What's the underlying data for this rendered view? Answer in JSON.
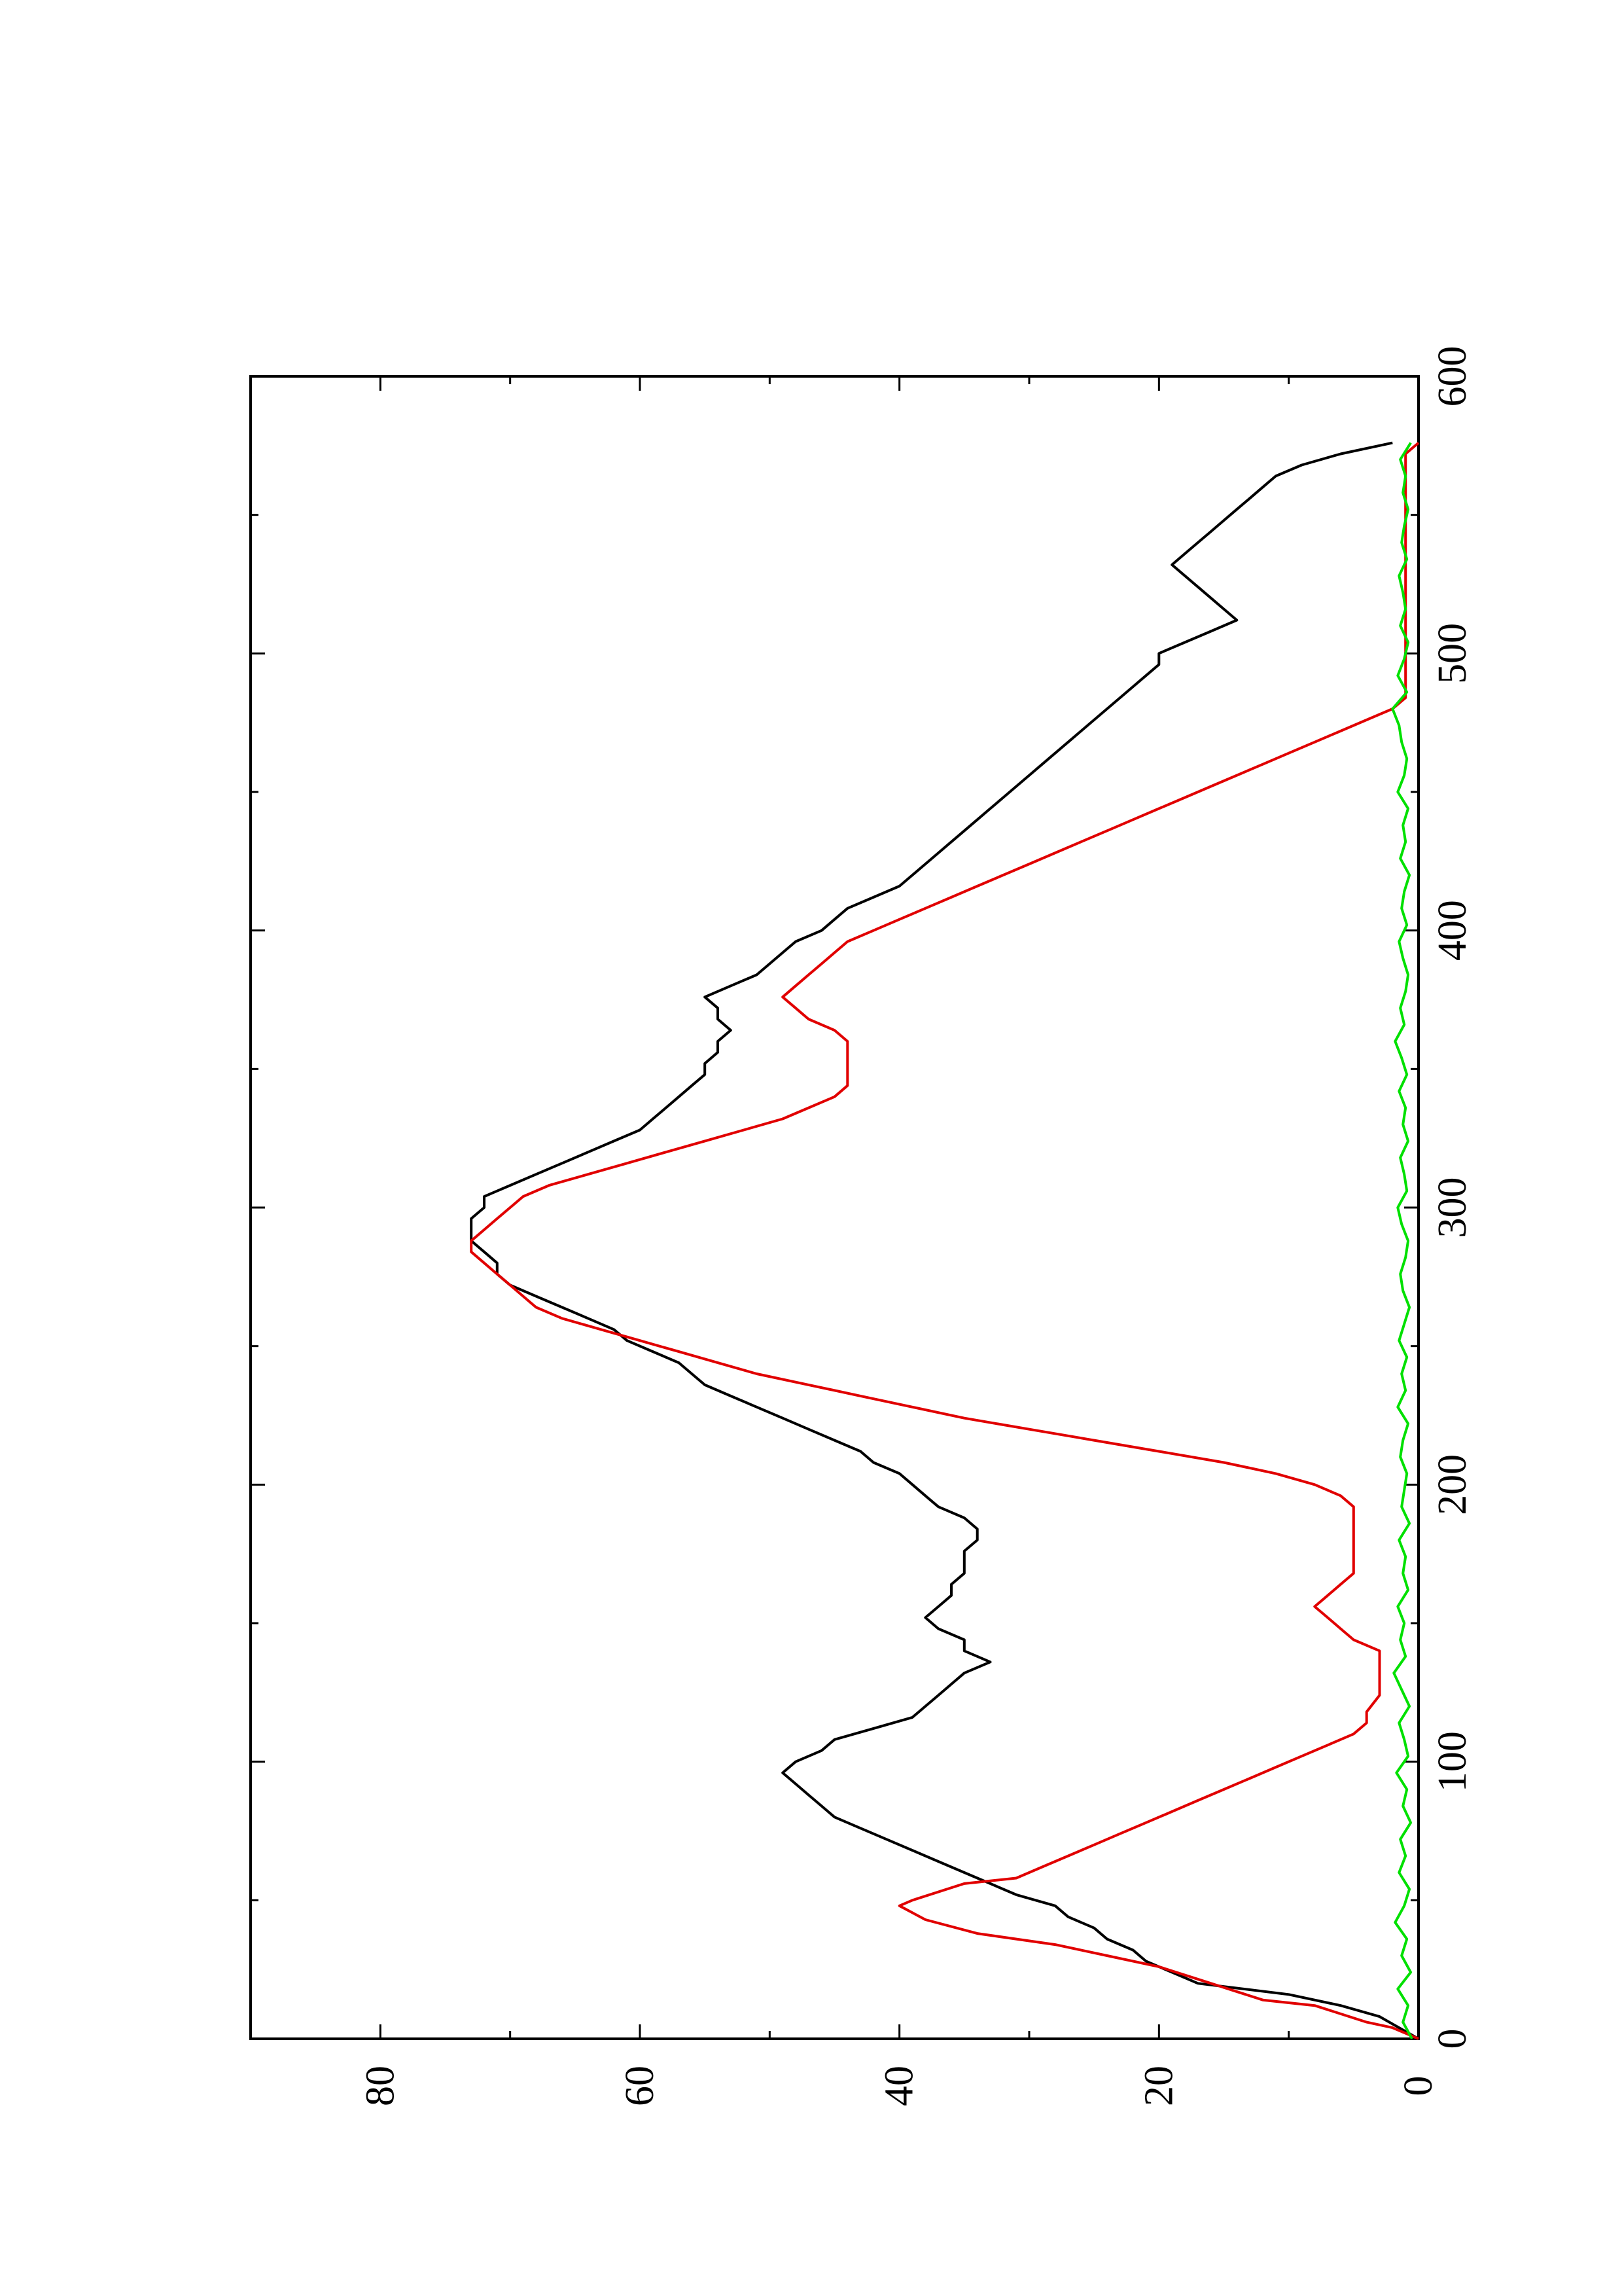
{
  "chart_data": {
    "type": "line",
    "orientation": "rotated-90-counterclockwise",
    "title": "",
    "xlabel": "",
    "ylabel": "",
    "xlim": [
      0,
      600
    ],
    "ylim": [
      0,
      90
    ],
    "x_ticks": [
      0,
      100,
      200,
      300,
      400,
      500,
      600
    ],
    "y_ticks": [
      0,
      20,
      40,
      60,
      80
    ],
    "x_tick_labels": [
      "0",
      "100",
      "200",
      "300",
      "400",
      "500",
      "600"
    ],
    "y_tick_labels": [
      "0",
      "20",
      "40",
      "60",
      "80"
    ],
    "grid": false,
    "legend": "none",
    "series": [
      {
        "color": "#000000",
        "x": [
          0,
          4,
          8,
          12,
          16,
          20,
          24,
          28,
          32,
          36,
          40,
          44,
          48,
          52,
          56,
          60,
          64,
          68,
          72,
          76,
          80,
          84,
          88,
          92,
          96,
          100,
          104,
          108,
          112,
          116,
          120,
          124,
          128,
          132,
          136,
          140,
          144,
          148,
          152,
          156,
          160,
          164,
          168,
          172,
          176,
          180,
          184,
          188,
          192,
          196,
          200,
          204,
          208,
          212,
          216,
          220,
          224,
          228,
          232,
          236,
          240,
          244,
          248,
          252,
          256,
          260,
          264,
          268,
          272,
          276,
          280,
          284,
          288,
          292,
          296,
          300,
          304,
          308,
          312,
          316,
          320,
          324,
          328,
          332,
          336,
          340,
          344,
          348,
          352,
          356,
          360,
          364,
          368,
          372,
          376,
          380,
          384,
          388,
          392,
          396,
          400,
          404,
          408,
          412,
          416,
          420,
          424,
          428,
          432,
          436,
          440,
          444,
          448,
          452,
          456,
          460,
          464,
          468,
          472,
          476,
          480,
          484,
          488,
          492,
          496,
          500,
          504,
          508,
          512,
          516,
          520,
          524,
          528,
          532,
          536,
          540,
          544,
          548,
          552,
          556,
          560,
          564,
          568,
          572,
          576
        ],
        "y": [
          0,
          1.5,
          3,
          6,
          10,
          17,
          19,
          21,
          22,
          24,
          25,
          27,
          28,
          31,
          33,
          35,
          37,
          39,
          41,
          43,
          45,
          46,
          47,
          48,
          49,
          48,
          46,
          45,
          42,
          39,
          38,
          37,
          36,
          35,
          33,
          35,
          35,
          37,
          38,
          37,
          36,
          36,
          35,
          35,
          35,
          34,
          34,
          35,
          37,
          38,
          39,
          40,
          42,
          43,
          45,
          47,
          49,
          51,
          53,
          55,
          56,
          57,
          59,
          61,
          62,
          64,
          66,
          68,
          70,
          71,
          71,
          72,
          73,
          73,
          73,
          72,
          72,
          70,
          68,
          66,
          64,
          62,
          60,
          59,
          58,
          57,
          56,
          55,
          55,
          54,
          54,
          53,
          54,
          54,
          55,
          53,
          51,
          50,
          49,
          48,
          46,
          45,
          44,
          42,
          40,
          39,
          38,
          37,
          36,
          35,
          34,
          33,
          32,
          31,
          30,
          29,
          28,
          27,
          26,
          25,
          24,
          23,
          22,
          21,
          20,
          20,
          18,
          16,
          14,
          15,
          16,
          17,
          18,
          19,
          18,
          17,
          16,
          15,
          14,
          13,
          12,
          11,
          9,
          6,
          2
        ]
      },
      {
        "color": "#e10000",
        "x": [
          0,
          4,
          6,
          12,
          14,
          20,
          26,
          30,
          34,
          38,
          43,
          48,
          50,
          56,
          58,
          62,
          66,
          70,
          74,
          78,
          82,
          86,
          90,
          94,
          98,
          102,
          106,
          110,
          114,
          118,
          124,
          128,
          132,
          136,
          140,
          144,
          148,
          152,
          156,
          160,
          164,
          168,
          176,
          186,
          192,
          196,
          200,
          204,
          208,
          212,
          216,
          220,
          224,
          228,
          232,
          236,
          240,
          244,
          248,
          252,
          256,
          260,
          264,
          268,
          272,
          276,
          280,
          284,
          288,
          292,
          296,
          300,
          304,
          308,
          312,
          316,
          320,
          324,
          328,
          332,
          336,
          340,
          344,
          348,
          352,
          356,
          360,
          364,
          368,
          372,
          376,
          380,
          384,
          388,
          392,
          396,
          400,
          404,
          408,
          412,
          416,
          420,
          424,
          428,
          432,
          436,
          440,
          444,
          448,
          452,
          456,
          460,
          464,
          468,
          472,
          476,
          480,
          484,
          488,
          492,
          496,
          500,
          504,
          508,
          512,
          516,
          520,
          524,
          528,
          532,
          536,
          540,
          544,
          548,
          552,
          556,
          560,
          564,
          568,
          572,
          576
        ],
        "y": [
          0,
          2,
          4,
          8,
          12,
          16,
          20,
          24,
          28,
          34,
          38,
          40,
          39,
          35,
          31,
          29,
          27,
          25,
          23,
          21,
          19,
          17,
          15,
          13,
          11,
          9,
          7,
          5,
          4,
          4,
          3,
          3,
          3,
          3,
          3,
          5,
          6,
          7,
          8,
          7,
          6,
          5,
          5,
          5,
          5,
          6,
          8,
          11,
          15,
          20,
          25,
          30,
          35,
          39,
          43,
          47,
          51,
          54,
          57,
          60,
          63,
          66,
          68,
          69,
          70,
          71,
          72,
          73,
          73,
          72,
          71,
          70,
          69,
          67,
          64,
          61,
          58,
          55,
          52,
          49,
          47,
          45,
          44,
          44,
          44,
          44,
          44,
          45,
          47,
          48,
          49,
          48,
          47,
          46,
          45,
          44,
          42,
          40,
          38,
          36,
          34,
          32,
          30,
          28,
          26,
          24,
          22,
          20,
          18,
          16,
          14,
          12,
          10,
          8,
          6,
          4,
          2,
          1,
          1,
          1,
          1,
          1,
          1,
          1,
          1,
          1,
          1,
          1,
          1,
          1,
          1,
          1,
          1,
          1,
          1,
          1,
          1,
          1,
          1,
          1,
          0
        ]
      },
      {
        "color": "#00e000",
        "x": [
          0,
          6,
          12,
          18,
          24,
          30,
          36,
          42,
          48,
          54,
          60,
          66,
          72,
          78,
          84,
          90,
          96,
          102,
          108,
          114,
          120,
          126,
          132,
          138,
          144,
          150,
          156,
          162,
          168,
          174,
          180,
          186,
          192,
          198,
          204,
          210,
          216,
          222,
          228,
          234,
          240,
          246,
          252,
          258,
          264,
          270,
          276,
          282,
          288,
          294,
          300,
          306,
          312,
          318,
          324,
          330,
          336,
          342,
          348,
          354,
          360,
          366,
          372,
          378,
          384,
          390,
          396,
          402,
          408,
          414,
          420,
          426,
          432,
          438,
          444,
          450,
          456,
          462,
          468,
          474,
          480,
          486,
          492,
          498,
          504,
          510,
          516,
          522,
          528,
          534,
          540,
          546,
          552,
          558,
          564,
          570,
          576
        ],
        "y": [
          0.5,
          1.2,
          0.8,
          1.6,
          0.6,
          1.3,
          0.9,
          1.8,
          1.1,
          0.7,
          1.5,
          1.0,
          1.4,
          0.6,
          1.2,
          0.9,
          1.7,
          0.8,
          1.1,
          1.5,
          0.7,
          1.3,
          1.9,
          1.0,
          1.4,
          1.1,
          1.6,
          0.8,
          1.2,
          1.0,
          1.5,
          0.7,
          1.3,
          1.1,
          0.9,
          1.4,
          1.2,
          0.8,
          1.6,
          1.0,
          1.3,
          0.9,
          1.5,
          1.1,
          0.7,
          1.2,
          1.4,
          1.0,
          0.8,
          1.3,
          1.6,
          0.9,
          1.1,
          1.4,
          0.8,
          1.2,
          1.0,
          1.5,
          0.9,
          1.3,
          1.8,
          1.1,
          1.4,
          1.0,
          0.8,
          1.2,
          1.5,
          0.9,
          1.3,
          1.1,
          0.7,
          1.4,
          1.0,
          1.2,
          0.8,
          1.6,
          1.1,
          0.9,
          1.3,
          1.5,
          2.0,
          0.9,
          1.6,
          1.1,
          0.8,
          1.4,
          1.0,
          1.2,
          1.5,
          0.9,
          1.3,
          1.1,
          0.8,
          1.2,
          1.0,
          1.4,
          0.6
        ]
      }
    ]
  }
}
